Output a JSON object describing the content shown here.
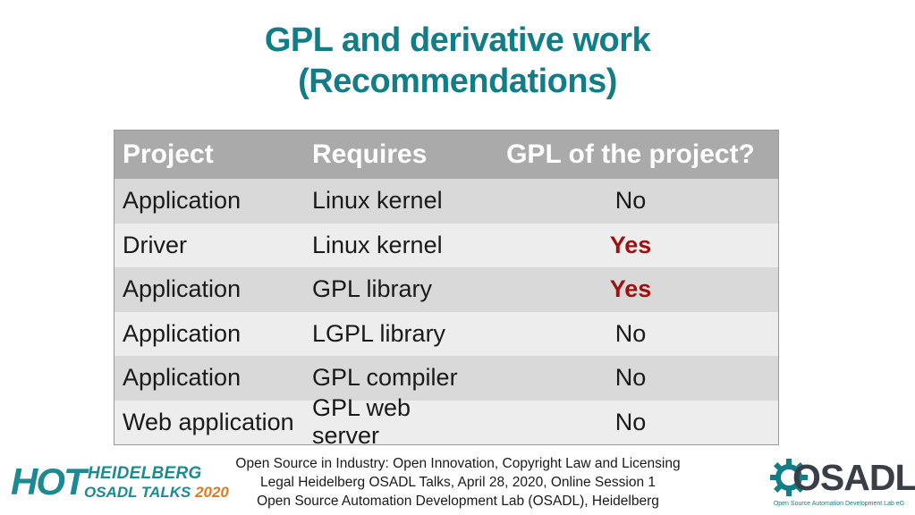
{
  "title": {
    "line1": "GPL and derivative work",
    "line2": "(Recommendations)"
  },
  "table": {
    "headers": [
      "Project",
      "Requires",
      "GPL of the project?"
    ],
    "rows": [
      {
        "project": "Application",
        "requires": "Linux kernel",
        "gpl": "No"
      },
      {
        "project": "Driver",
        "requires": "Linux kernel",
        "gpl": "Yes"
      },
      {
        "project": "Application",
        "requires": "GPL library",
        "gpl": "Yes"
      },
      {
        "project": "Application",
        "requires": "LGPL library",
        "gpl": "No"
      },
      {
        "project": "Application",
        "requires": "GPL compiler",
        "gpl": "No"
      },
      {
        "project": "Web application",
        "requires": "GPL web server",
        "gpl": "No"
      }
    ]
  },
  "footer": {
    "line1": "Open Source in Industry: Open Innovation, Copyright Law and Licensing",
    "line2": "Legal Heidelberg OSADL Talks, April 28, 2020, Online Session 1",
    "line3": "Open Source Automation Development Lab (OSADL), Heidelberg"
  },
  "logo_left": {
    "hot": "HOT",
    "line1": "HEIDELBERG",
    "line2a": "OSADL TALKS",
    "line2b": "2020"
  },
  "logo_right": {
    "word": "OSADL",
    "tagline": "Open Source Automation Development Lab eG"
  },
  "colors": {
    "title": "#127d87",
    "header_bg": "#aaaaaa",
    "yes": "#a01010",
    "year": "#e07b1d"
  }
}
